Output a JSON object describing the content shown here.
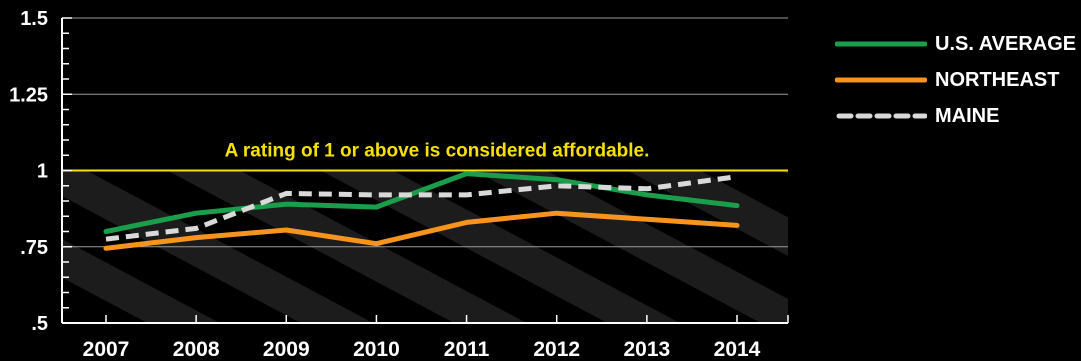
{
  "chart_data": {
    "type": "line",
    "x": [
      "2007",
      "2008",
      "2009",
      "2010",
      "2011",
      "2012",
      "2013",
      "2014"
    ],
    "ylim": [
      0.5,
      1.5
    ],
    "yticks": [
      {
        "value": 0.5,
        "label": ".5"
      },
      {
        "value": 0.75,
        "label": ".75"
      },
      {
        "value": 1.0,
        "label": "1"
      },
      {
        "value": 1.25,
        "label": "1.25"
      },
      {
        "value": 1.5,
        "label": "1.5"
      }
    ],
    "series": [
      {
        "name": "U.S. AVERAGE",
        "color": "#1a9e4b",
        "style": "solid",
        "values": [
          0.8,
          0.86,
          0.89,
          0.88,
          0.99,
          0.97,
          0.92,
          0.885
        ]
      },
      {
        "name": "NORTHEAST",
        "color": "#f7941d",
        "style": "solid",
        "values": [
          0.745,
          0.78,
          0.805,
          0.76,
          0.83,
          0.86,
          0.84,
          0.82
        ]
      },
      {
        "name": "MAINE",
        "color": "#d9d9d9",
        "style": "dashed",
        "values": [
          0.775,
          0.81,
          0.925,
          0.92,
          0.92,
          0.95,
          0.94,
          0.98
        ]
      }
    ],
    "threshold": {
      "value": 1.0,
      "color": "#f5e000",
      "annotation": "A rating of 1 or above is considered affordable."
    },
    "grid": true,
    "legend_position": "right"
  }
}
